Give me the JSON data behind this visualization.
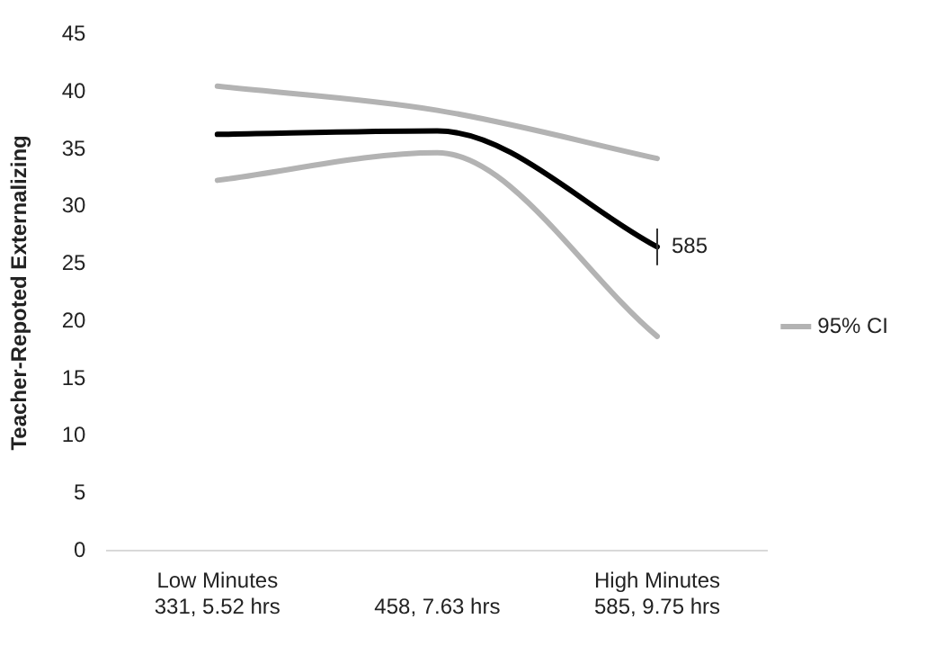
{
  "chart_data": {
    "type": "line",
    "ylabel": "Teacher-Repoted Externalizing",
    "categories": [
      "Low Minutes\n331, 5.52 hrs",
      "458, 7.63 hrs",
      "High Minutes\n585, 9.75 hrs"
    ],
    "series": [
      {
        "color": "#000000",
        "values": [
          36.3,
          36.6,
          26.5
        ],
        "errors": [
          null,
          null,
          1.6
        ]
      },
      {
        "name": "95% CI",
        "color": "#b3b3b3",
        "values": [
          40.5,
          38.4,
          34.2
        ]
      },
      {
        "color": "#b3b3b3",
        "values": [
          32.3,
          34.7,
          18.7
        ]
      }
    ],
    "annotations": [
      {
        "text": "585",
        "x": "High Minutes\n585, 9.75 hrs",
        "y": 26.5
      }
    ],
    "ylim": [
      0,
      45
    ],
    "yticks": [
      0,
      5,
      10,
      15,
      20,
      25,
      30,
      35,
      40,
      45
    ],
    "grid": false,
    "legend": "right",
    "marker": "none",
    "line_style": "solid"
  }
}
